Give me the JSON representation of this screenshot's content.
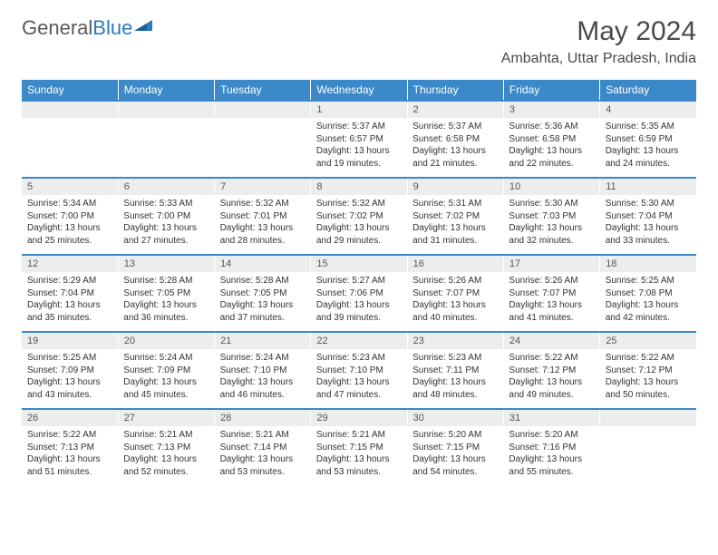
{
  "brand": {
    "part1": "General",
    "part2": "Blue"
  },
  "title": "May 2024",
  "location": "Ambahta, Uttar Pradesh, India",
  "colors": {
    "header_bg": "#3b89c9",
    "header_text": "#ffffff",
    "daynum_bg": "#eceeee",
    "text": "#333333",
    "brand_gray": "#5a5a5a",
    "brand_blue": "#2a7ac0"
  },
  "days": [
    "Sunday",
    "Monday",
    "Tuesday",
    "Wednesday",
    "Thursday",
    "Friday",
    "Saturday"
  ],
  "weeks": [
    [
      null,
      null,
      null,
      {
        "n": "1",
        "sr": "5:37 AM",
        "ss": "6:57 PM",
        "dl": "13 hours and 19 minutes."
      },
      {
        "n": "2",
        "sr": "5:37 AM",
        "ss": "6:58 PM",
        "dl": "13 hours and 21 minutes."
      },
      {
        "n": "3",
        "sr": "5:36 AM",
        "ss": "6:58 PM",
        "dl": "13 hours and 22 minutes."
      },
      {
        "n": "4",
        "sr": "5:35 AM",
        "ss": "6:59 PM",
        "dl": "13 hours and 24 minutes."
      }
    ],
    [
      {
        "n": "5",
        "sr": "5:34 AM",
        "ss": "7:00 PM",
        "dl": "13 hours and 25 minutes."
      },
      {
        "n": "6",
        "sr": "5:33 AM",
        "ss": "7:00 PM",
        "dl": "13 hours and 27 minutes."
      },
      {
        "n": "7",
        "sr": "5:32 AM",
        "ss": "7:01 PM",
        "dl": "13 hours and 28 minutes."
      },
      {
        "n": "8",
        "sr": "5:32 AM",
        "ss": "7:02 PM",
        "dl": "13 hours and 29 minutes."
      },
      {
        "n": "9",
        "sr": "5:31 AM",
        "ss": "7:02 PM",
        "dl": "13 hours and 31 minutes."
      },
      {
        "n": "10",
        "sr": "5:30 AM",
        "ss": "7:03 PM",
        "dl": "13 hours and 32 minutes."
      },
      {
        "n": "11",
        "sr": "5:30 AM",
        "ss": "7:04 PM",
        "dl": "13 hours and 33 minutes."
      }
    ],
    [
      {
        "n": "12",
        "sr": "5:29 AM",
        "ss": "7:04 PM",
        "dl": "13 hours and 35 minutes."
      },
      {
        "n": "13",
        "sr": "5:28 AM",
        "ss": "7:05 PM",
        "dl": "13 hours and 36 minutes."
      },
      {
        "n": "14",
        "sr": "5:28 AM",
        "ss": "7:05 PM",
        "dl": "13 hours and 37 minutes."
      },
      {
        "n": "15",
        "sr": "5:27 AM",
        "ss": "7:06 PM",
        "dl": "13 hours and 39 minutes."
      },
      {
        "n": "16",
        "sr": "5:26 AM",
        "ss": "7:07 PM",
        "dl": "13 hours and 40 minutes."
      },
      {
        "n": "17",
        "sr": "5:26 AM",
        "ss": "7:07 PM",
        "dl": "13 hours and 41 minutes."
      },
      {
        "n": "18",
        "sr": "5:25 AM",
        "ss": "7:08 PM",
        "dl": "13 hours and 42 minutes."
      }
    ],
    [
      {
        "n": "19",
        "sr": "5:25 AM",
        "ss": "7:09 PM",
        "dl": "13 hours and 43 minutes."
      },
      {
        "n": "20",
        "sr": "5:24 AM",
        "ss": "7:09 PM",
        "dl": "13 hours and 45 minutes."
      },
      {
        "n": "21",
        "sr": "5:24 AM",
        "ss": "7:10 PM",
        "dl": "13 hours and 46 minutes."
      },
      {
        "n": "22",
        "sr": "5:23 AM",
        "ss": "7:10 PM",
        "dl": "13 hours and 47 minutes."
      },
      {
        "n": "23",
        "sr": "5:23 AM",
        "ss": "7:11 PM",
        "dl": "13 hours and 48 minutes."
      },
      {
        "n": "24",
        "sr": "5:22 AM",
        "ss": "7:12 PM",
        "dl": "13 hours and 49 minutes."
      },
      {
        "n": "25",
        "sr": "5:22 AM",
        "ss": "7:12 PM",
        "dl": "13 hours and 50 minutes."
      }
    ],
    [
      {
        "n": "26",
        "sr": "5:22 AM",
        "ss": "7:13 PM",
        "dl": "13 hours and 51 minutes."
      },
      {
        "n": "27",
        "sr": "5:21 AM",
        "ss": "7:13 PM",
        "dl": "13 hours and 52 minutes."
      },
      {
        "n": "28",
        "sr": "5:21 AM",
        "ss": "7:14 PM",
        "dl": "13 hours and 53 minutes."
      },
      {
        "n": "29",
        "sr": "5:21 AM",
        "ss": "7:15 PM",
        "dl": "13 hours and 53 minutes."
      },
      {
        "n": "30",
        "sr": "5:20 AM",
        "ss": "7:15 PM",
        "dl": "13 hours and 54 minutes."
      },
      {
        "n": "31",
        "sr": "5:20 AM",
        "ss": "7:16 PM",
        "dl": "13 hours and 55 minutes."
      },
      null
    ]
  ],
  "labels": {
    "sunrise": "Sunrise:",
    "sunset": "Sunset:",
    "daylight": "Daylight:"
  }
}
